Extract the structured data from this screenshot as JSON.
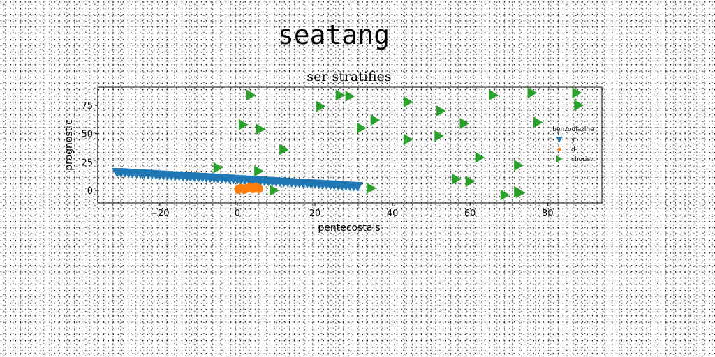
{
  "suptitle": "seatang",
  "chart_data": {
    "type": "scatter",
    "title": "ser stratifies",
    "xlabel": "pentecostals",
    "ylabel": "prognostic",
    "xlim": [
      -36,
      94
    ],
    "ylim": [
      -11,
      91
    ],
    "xticks": [
      -20,
      0,
      20,
      40,
      60,
      80
    ],
    "yticks": [
      0,
      25,
      50,
      75
    ],
    "grid": false,
    "legend": {
      "title": "benzodiazine",
      "placement": "center-right"
    },
    "series": [
      {
        "name": "y",
        "marker": "triangle-down",
        "color": "#1f77b4",
        "x": [
          -31,
          -30,
          -29,
          -28,
          -27,
          -26,
          -25,
          -24,
          -23,
          -22,
          -21,
          -20,
          -19,
          -18,
          -17,
          -16,
          -15,
          -14,
          -13,
          -12,
          -11,
          -10,
          -9,
          -8,
          -7,
          -6,
          -5,
          -4,
          -3,
          -2,
          -1,
          0,
          1,
          2,
          3,
          4,
          5,
          6,
          7,
          8,
          9,
          10,
          11,
          12,
          13,
          14,
          15,
          16,
          17,
          18,
          19,
          20,
          21,
          22,
          23,
          24,
          25,
          26,
          27,
          28,
          29,
          30,
          31
        ],
        "y": [
          15.8,
          15.6,
          15.4,
          15.2,
          15.0,
          14.8,
          14.6,
          14.4,
          14.2,
          14.0,
          13.8,
          13.6,
          13.4,
          13.2,
          13.0,
          12.8,
          12.6,
          12.4,
          12.2,
          12.0,
          11.8,
          11.6,
          11.4,
          11.2,
          11.0,
          10.8,
          10.6,
          10.4,
          10.2,
          10.0,
          9.8,
          9.6,
          9.4,
          9.2,
          9.0,
          8.8,
          8.6,
          8.4,
          8.2,
          8.0,
          7.8,
          7.6,
          7.4,
          7.2,
          7.0,
          6.8,
          6.6,
          6.4,
          6.2,
          6.0,
          5.8,
          5.6,
          5.4,
          5.2,
          5.0,
          4.8,
          4.6,
          4.4,
          4.2,
          4.0,
          3.8,
          3.6,
          3.4
        ]
      },
      {
        "name": "d",
        "marker": "circle",
        "color": "#ff7f0e",
        "x": [
          0.3,
          1.0,
          1.8,
          2.6,
          3.3,
          4.0,
          4.8,
          5.5
        ],
        "y": [
          1.0,
          2.0,
          1.0,
          2.0,
          3.0,
          1.5,
          3.0,
          1.5
        ]
      },
      {
        "name": "chorist",
        "marker": "triangle-right",
        "color": "#2ca02c",
        "x": [
          3.5,
          26.5,
          29,
          21.5,
          12,
          6,
          1.5,
          -5,
          5.5,
          9.5,
          34.5,
          32,
          35.5,
          44,
          44,
          52,
          52.5,
          58.5,
          56.5,
          60,
          62.5,
          66,
          69,
          72.5,
          73,
          76,
          77.5,
          87.5,
          88,
          72.5
        ],
        "y": [
          84,
          84,
          83,
          74,
          36,
          54,
          58,
          20,
          17,
          0,
          2,
          55,
          62,
          78,
          45,
          48,
          70,
          59,
          10,
          8,
          29,
          84,
          -4,
          22,
          -2,
          86,
          60,
          86,
          75,
          -1
        ]
      }
    ]
  }
}
